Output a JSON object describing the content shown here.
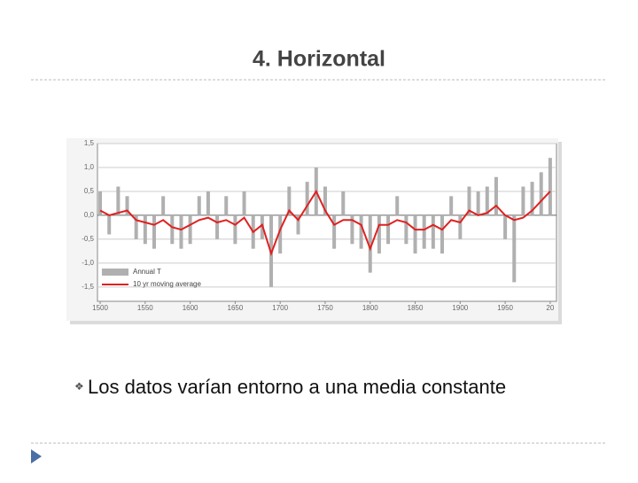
{
  "title": "4. Horizontal",
  "bullet": "Los datos varían entorno a una media constante",
  "chart_data": {
    "type": "line",
    "x": [
      1500,
      1510,
      1520,
      1530,
      1540,
      1550,
      1560,
      1570,
      1580,
      1590,
      1600,
      1610,
      1620,
      1630,
      1640,
      1650,
      1660,
      1670,
      1680,
      1690,
      1700,
      1710,
      1720,
      1730,
      1740,
      1750,
      1760,
      1770,
      1780,
      1790,
      1800,
      1810,
      1820,
      1830,
      1840,
      1850,
      1860,
      1870,
      1880,
      1890,
      1900,
      1910,
      1920,
      1930,
      1940,
      1950,
      1960,
      1970,
      1980,
      1990,
      2000
    ],
    "series": [
      {
        "name": "Annual T",
        "color": "#b0b0b0",
        "kind": "bar",
        "values": [
          0.5,
          -0.4,
          0.6,
          0.4,
          -0.5,
          -0.6,
          -0.7,
          0.4,
          -0.6,
          -0.7,
          -0.6,
          0.4,
          0.5,
          -0.5,
          0.4,
          -0.6,
          0.5,
          -0.7,
          -0.5,
          -1.5,
          -0.8,
          0.6,
          -0.4,
          0.7,
          1.0,
          0.6,
          -0.7,
          0.5,
          -0.6,
          -0.7,
          -1.2,
          -0.8,
          -0.6,
          0.4,
          -0.6,
          -0.8,
          -0.7,
          -0.7,
          -0.8,
          0.4,
          -0.5,
          0.6,
          0.5,
          0.6,
          0.8,
          -0.5,
          -1.4,
          0.6,
          0.7,
          0.9,
          1.2
        ]
      },
      {
        "name": "10 yr moving average",
        "color": "#e02020",
        "kind": "line",
        "values": [
          0.1,
          0.0,
          0.05,
          0.1,
          -0.1,
          -0.15,
          -0.2,
          -0.1,
          -0.25,
          -0.3,
          -0.2,
          -0.1,
          -0.05,
          -0.15,
          -0.1,
          -0.2,
          -0.05,
          -0.35,
          -0.2,
          -0.8,
          -0.3,
          0.1,
          -0.1,
          0.2,
          0.5,
          0.1,
          -0.2,
          -0.1,
          -0.1,
          -0.2,
          -0.7,
          -0.2,
          -0.2,
          -0.1,
          -0.15,
          -0.3,
          -0.3,
          -0.2,
          -0.3,
          -0.1,
          -0.15,
          0.1,
          0.0,
          0.05,
          0.2,
          0.0,
          -0.1,
          -0.05,
          0.1,
          0.3,
          0.5
        ]
      }
    ],
    "xlim": [
      1497,
      2007
    ],
    "ylim": [
      -1.8,
      1.5
    ],
    "xticks": [
      1500,
      1550,
      1600,
      1650,
      1700,
      1750,
      1800,
      1850,
      1900,
      1950,
      {
        "value": 2000,
        "label": "20"
      }
    ],
    "yticks": [
      {
        "value": 1.5,
        "label": "1,5"
      },
      {
        "value": 1.0,
        "label": "1,0"
      },
      {
        "value": 0.5,
        "label": "0,5"
      },
      {
        "value": 0,
        "label": "0,0"
      },
      {
        "value": -0.5,
        "label": "-0,5"
      },
      {
        "value": -1.0,
        "label": "-1,0"
      },
      {
        "value": -1.5,
        "label": "-1,5"
      }
    ],
    "grid": true
  }
}
